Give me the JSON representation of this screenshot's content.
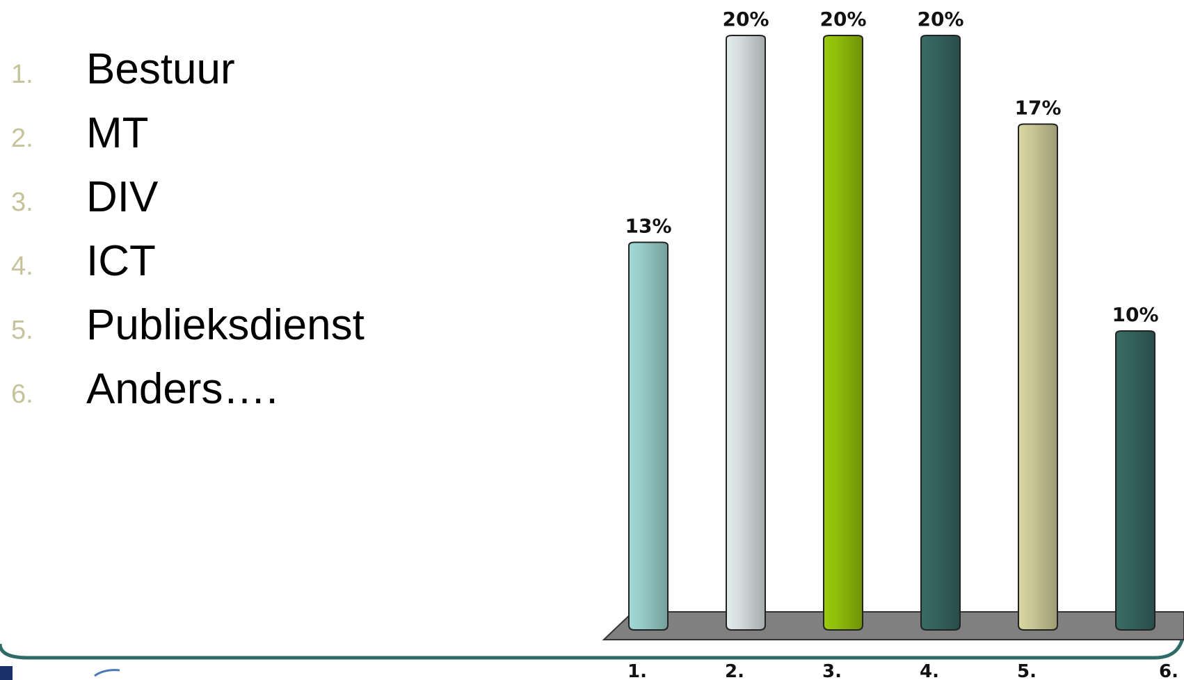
{
  "options": [
    {
      "num": "1.",
      "label": "Bestuur"
    },
    {
      "num": "2.",
      "label": "MT"
    },
    {
      "num": "3.",
      "label": "DIV"
    },
    {
      "num": "4.",
      "label": "ICT"
    },
    {
      "num": "5.",
      "label": "Publieksdienst"
    },
    {
      "num": "6.",
      "label": "Anders…."
    }
  ],
  "colors": {
    "number": "#c6c39a",
    "floor": "#808080",
    "frame": "#2e6a66"
  },
  "chart_data": {
    "type": "bar",
    "categories": [
      "1.",
      "2.",
      "3.",
      "4.",
      "5.",
      "6."
    ],
    "values": [
      13,
      20,
      20,
      20,
      17,
      10
    ],
    "value_labels": [
      "13%",
      "20%",
      "20%",
      "20%",
      "17%",
      "10%"
    ],
    "ylim": [
      0,
      20
    ],
    "colors": [
      "#95cac7",
      "#d3dbdc",
      "#8fbc0a",
      "#35635f",
      "#c9c795",
      "#35635f"
    ],
    "grid": false,
    "legend": "none"
  }
}
